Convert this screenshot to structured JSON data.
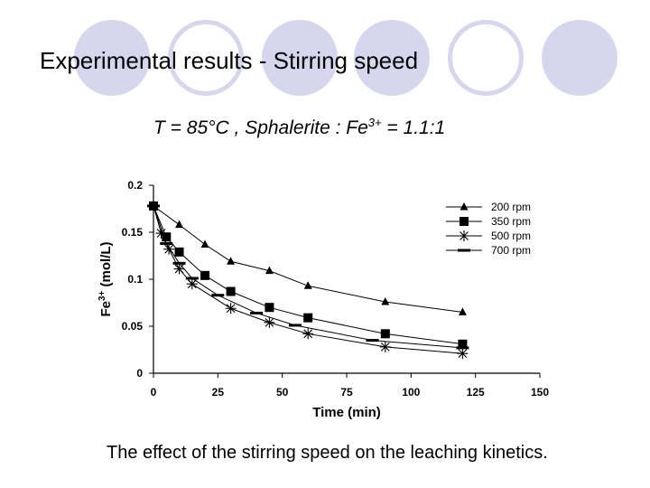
{
  "title": "Experimental results - Stirring speed",
  "subtitle": {
    "prefix": "T = 85°C ,   Sphalerite : Fe",
    "sup": "3+",
    "suffix": " = 1.1:1"
  },
  "caption": "The effect of the stirring speed on the leaching kinetics.",
  "colors": {
    "circle": "#d6d6ee"
  },
  "chart_data": {
    "type": "line",
    "title": "",
    "xlabel": "Time (min)",
    "ylabel_main": "Fe",
    "ylabel_sup": "3+",
    "ylabel_unit": " (mol/L)",
    "xlim": [
      0,
      150
    ],
    "ylim": [
      0,
      0.2
    ],
    "xticks": [
      0,
      25,
      50,
      75,
      100,
      125,
      150
    ],
    "yticks": [
      0,
      0.05,
      0.1,
      0.15,
      0.2
    ],
    "ytick_labels": [
      "0",
      "0.05",
      "0.1",
      "0.15",
      "0.2"
    ],
    "grid": false,
    "legend_position": "top-right",
    "series": [
      {
        "name": "200 rpm",
        "marker": "triangle",
        "x": [
          0,
          10,
          20,
          30,
          45,
          60,
          90,
          120
        ],
        "y": [
          0.178,
          0.158,
          0.137,
          0.119,
          0.109,
          0.093,
          0.076,
          0.065
        ]
      },
      {
        "name": "350 rpm",
        "marker": "square",
        "x": [
          0,
          5,
          10,
          20,
          30,
          45,
          60,
          90,
          120
        ],
        "y": [
          0.178,
          0.145,
          0.129,
          0.104,
          0.087,
          0.07,
          0.059,
          0.042,
          0.031
        ]
      },
      {
        "name": "500 rpm",
        "marker": "star",
        "x": [
          0,
          3,
          6,
          10,
          15,
          30,
          45,
          60,
          90,
          120
        ],
        "y": [
          0.178,
          0.149,
          0.132,
          0.111,
          0.095,
          0.069,
          0.054,
          0.042,
          0.028,
          0.021
        ]
      },
      {
        "name": "700 rpm",
        "marker": "dash",
        "x": [
          0,
          5,
          10,
          15,
          25,
          40,
          55,
          85,
          120
        ],
        "y": [
          0.178,
          0.138,
          0.117,
          0.101,
          0.083,
          0.064,
          0.051,
          0.035,
          0.027
        ]
      }
    ]
  }
}
